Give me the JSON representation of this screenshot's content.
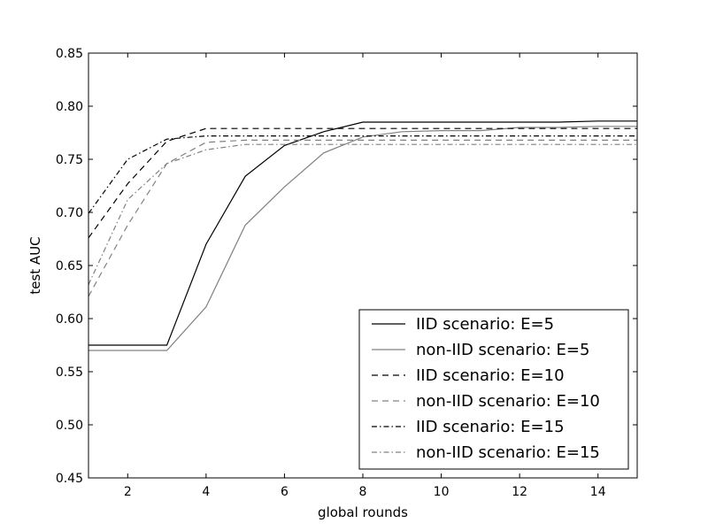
{
  "chart_data": {
    "type": "line",
    "xlabel": "global rounds",
    "ylabel": "test AUC",
    "xlim": [
      1,
      15
    ],
    "ylim": [
      0.45,
      0.85
    ],
    "xticks": [
      2,
      4,
      6,
      8,
      10,
      12,
      14
    ],
    "xtick_labels": [
      "2",
      "4",
      "6",
      "8",
      "10",
      "12",
      "14"
    ],
    "yticks": [
      0.45,
      0.5,
      0.55,
      0.6,
      0.65,
      0.7,
      0.75,
      0.8,
      0.85
    ],
    "ytick_labels": [
      "0.45",
      "0.50",
      "0.55",
      "0.60",
      "0.65",
      "0.70",
      "0.75",
      "0.80",
      "0.85"
    ],
    "grid": false,
    "legend_position": "lower-right",
    "x": [
      1,
      2,
      3,
      4,
      5,
      6,
      7,
      8,
      9,
      10,
      11,
      12,
      13,
      14,
      15
    ],
    "series": [
      {
        "name": "IID scenario: E=5",
        "color": "#000000",
        "dash": "solid",
        "values": [
          0.575,
          0.575,
          0.575,
          0.67,
          0.734,
          0.763,
          0.776,
          0.785,
          0.785,
          0.785,
          0.785,
          0.785,
          0.785,
          0.786,
          0.786
        ]
      },
      {
        "name": "non-IID scenario: E=5",
        "color": "#808080",
        "dash": "solid",
        "values": [
          0.57,
          0.57,
          0.57,
          0.611,
          0.688,
          0.724,
          0.756,
          0.771,
          0.776,
          0.777,
          0.777,
          0.78,
          0.78,
          0.781,
          0.781
        ]
      },
      {
        "name": "IID scenario: E=10",
        "color": "#000000",
        "dash": "dashed",
        "values": [
          0.676,
          0.727,
          0.767,
          0.779,
          0.779,
          0.779,
          0.779,
          0.779,
          0.779,
          0.779,
          0.779,
          0.779,
          0.779,
          0.779,
          0.779
        ]
      },
      {
        "name": "non-IID scenario: E=10",
        "color": "#808080",
        "dash": "dashed",
        "values": [
          0.621,
          0.688,
          0.746,
          0.766,
          0.768,
          0.768,
          0.768,
          0.768,
          0.768,
          0.768,
          0.768,
          0.768,
          0.768,
          0.768,
          0.768
        ]
      },
      {
        "name": "IID scenario: E=15",
        "color": "#000000",
        "dash": "dashdot",
        "values": [
          0.699,
          0.75,
          0.769,
          0.772,
          0.772,
          0.772,
          0.772,
          0.772,
          0.772,
          0.772,
          0.772,
          0.772,
          0.772,
          0.772,
          0.772
        ]
      },
      {
        "name": "non-IID scenario: E=15",
        "color": "#808080",
        "dash": "dashdot",
        "values": [
          0.632,
          0.712,
          0.746,
          0.759,
          0.764,
          0.764,
          0.764,
          0.764,
          0.764,
          0.764,
          0.764,
          0.764,
          0.764,
          0.764,
          0.764
        ]
      }
    ]
  }
}
